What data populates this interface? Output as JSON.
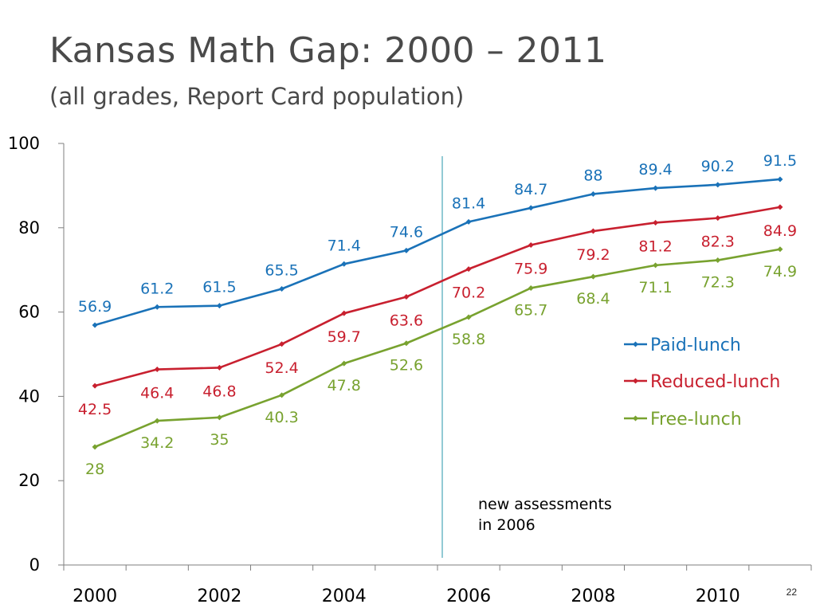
{
  "slide": {
    "title": "Kansas Math Gap:  2000 – 2011",
    "subtitle": "(all grades, Report Card population)",
    "page_number": "22"
  },
  "chart_data": {
    "type": "line",
    "title": "",
    "xlabel": "",
    "ylabel": "",
    "x": [
      2000,
      2001,
      2002,
      2003,
      2004,
      2005,
      2006,
      2007,
      2008,
      2009,
      2010,
      2011
    ],
    "x_tick_labels": [
      "2000",
      "2002",
      "2004",
      "2006",
      "2008",
      "2010"
    ],
    "ylim": [
      0,
      100
    ],
    "y_ticks": [
      0,
      20,
      40,
      60,
      80,
      100
    ],
    "grid": false,
    "legend_position": "right",
    "series": [
      {
        "name": "Paid-lunch",
        "color": "#1a72b8",
        "values": [
          56.9,
          61.2,
          61.5,
          65.5,
          71.4,
          74.6,
          81.4,
          84.7,
          88,
          89.4,
          90.2,
          91.5
        ],
        "labels": [
          "56.9",
          "61.2",
          "61.5",
          "65.5",
          "71.4",
          "74.6",
          "81.4",
          "84.7",
          "88",
          "89.4",
          "90.2",
          "91.5"
        ]
      },
      {
        "name": "Reduced-lunch",
        "color": "#c8202f",
        "values": [
          42.5,
          46.4,
          46.8,
          52.4,
          59.7,
          63.6,
          70.2,
          75.9,
          79.2,
          81.2,
          82.3,
          84.9
        ],
        "labels": [
          "42.5",
          "46.4",
          "46.8",
          "52.4",
          "59.7",
          "63.6",
          "70.2",
          "75.9",
          "79.2",
          "81.2",
          "82.3",
          "84.9"
        ]
      },
      {
        "name": "Free-lunch",
        "color": "#78a22f",
        "values": [
          28,
          34.2,
          35,
          40.3,
          47.8,
          52.6,
          58.8,
          65.7,
          68.4,
          71.1,
          72.3,
          74.9
        ],
        "labels": [
          "28",
          "34.2",
          "35",
          "40.3",
          "47.8",
          "52.6",
          "58.8",
          "65.7",
          "68.4",
          "71.1",
          "72.3",
          "74.9"
        ]
      }
    ],
    "annotation": {
      "line_before_x": 2006,
      "color": "#4aa6b8",
      "lines": [
        "new assessments",
        "in 2006"
      ]
    }
  }
}
